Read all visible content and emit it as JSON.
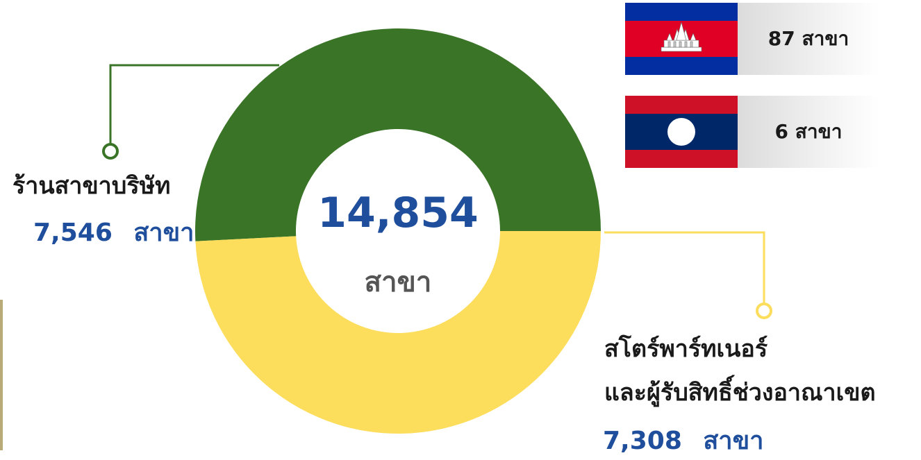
{
  "chart_data": {
    "type": "pie",
    "donut": true,
    "total_label": "14,854",
    "total_unit": "สาขา",
    "slices": [
      {
        "label": "ร้านสาขาบริษัท",
        "value": 7546,
        "value_text": "7,546",
        "unit": "สาขา",
        "color": "#3a7427"
      },
      {
        "label_lines": [
          "สโตร์พาร์ทเนอร์",
          "และผู้รับสิทธิ์ช่วงอาณาเขต"
        ],
        "value": 7308,
        "value_text": "7,308",
        "unit": "สาขา",
        "color": "#fcdd5c"
      }
    ]
  },
  "countries": [
    {
      "flag_icon": "cambodia-flag-icon",
      "text": "87 สาขา"
    },
    {
      "flag_icon": "laos-flag-icon",
      "text": "6 สาขา"
    }
  ],
  "colors": {
    "accent_blue": "#1f4e9c",
    "green": "#3a7427",
    "yellow": "#fcdd5c"
  }
}
